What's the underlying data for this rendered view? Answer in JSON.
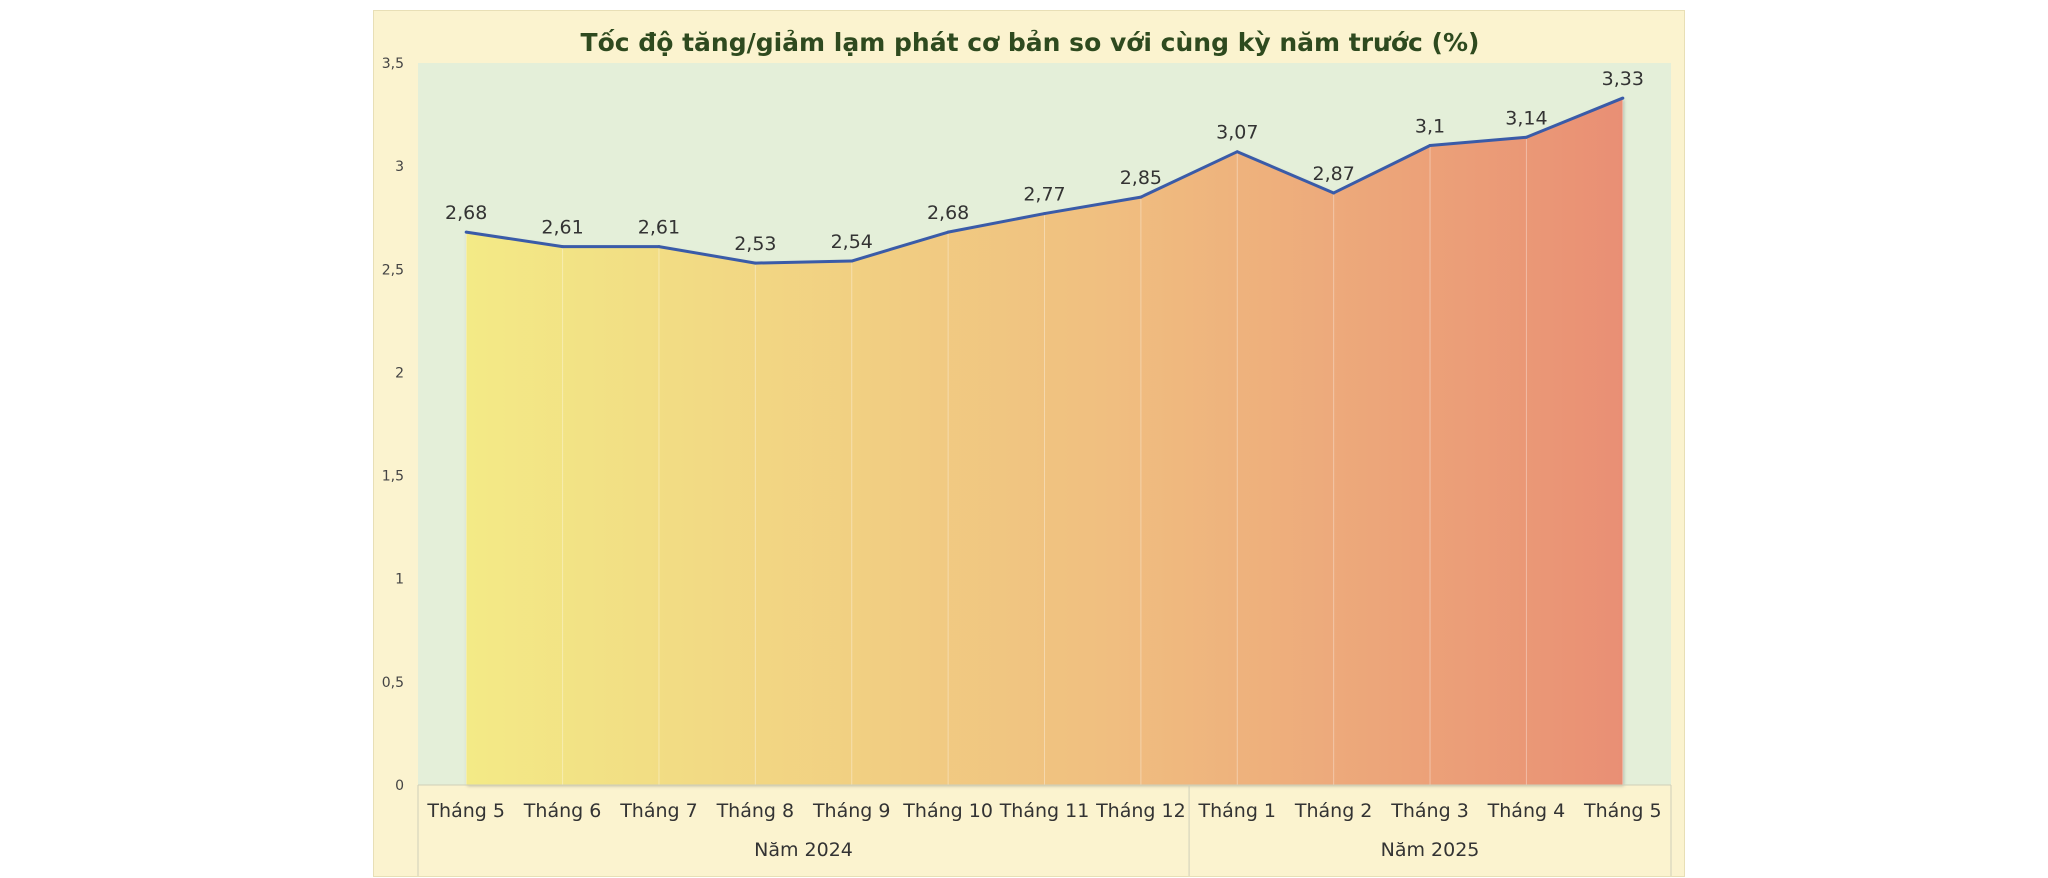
{
  "chart_data": {
    "type": "area",
    "title": "Tốc độ tăng/giảm lạm phát cơ bản so với cùng kỳ năm trước (%)",
    "categories": [
      "Tháng 5",
      "Tháng 6",
      "Tháng 7",
      "Tháng 8",
      "Tháng 9",
      "Tháng 10",
      "Tháng 11",
      "Tháng 12",
      "Tháng 1",
      "Tháng 2",
      "Tháng 3",
      "Tháng 4",
      "Tháng 5"
    ],
    "values": [
      2.68,
      2.61,
      2.61,
      2.53,
      2.54,
      2.68,
      2.77,
      2.85,
      3.07,
      2.87,
      3.1,
      3.14,
      3.33
    ],
    "value_labels": [
      "2,68",
      "2,61",
      "2,61",
      "2,53",
      "2,54",
      "2,68",
      "2,77",
      "2,85",
      "3,07",
      "2,87",
      "3,1",
      "3,14",
      "3,33"
    ],
    "groups": [
      {
        "label": "Năm 2024",
        "count": 8
      },
      {
        "label": "Năm 2025",
        "count": 5
      }
    ],
    "ylim": [
      0,
      3.5
    ],
    "yticks": [
      0,
      0.5,
      1,
      1.5,
      2,
      2.5,
      3,
      3.5
    ],
    "ytick_labels": [
      "0",
      "0,5",
      "1",
      "1,5",
      "2",
      "2,5",
      "3",
      "3,5"
    ],
    "xlabel": "",
    "ylabel": "",
    "grid": "vertical",
    "legend": "none",
    "colors": {
      "background": "#fbf3cf",
      "plot_background": "#e4efd9",
      "line": "#3a5ba8",
      "fill_start": "#f3ea86",
      "fill_mid": "#f0bf80",
      "fill_end": "#e98f74",
      "title": "#2e4a1f",
      "text": "#333333",
      "tick_text": "#444444"
    }
  }
}
